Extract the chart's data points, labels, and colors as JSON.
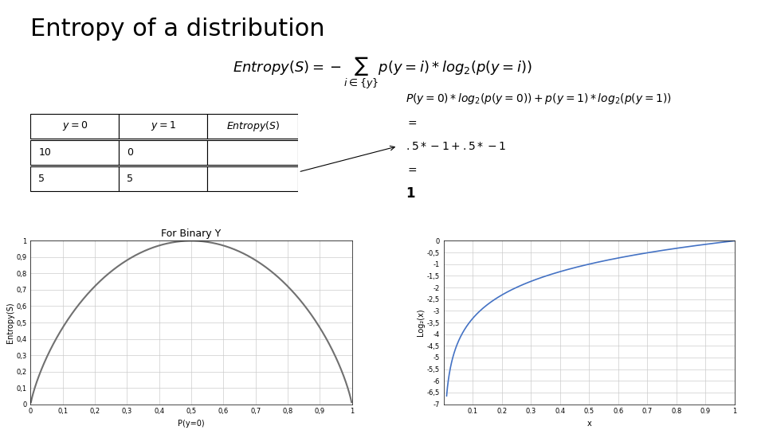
{
  "title": "Entropy of a distribution",
  "title_fontsize": 22,
  "background_color": "#ffffff",
  "formula": "Entropy(S) = -\\sum_{i\\in\\{y\\}} p(y=i) * log_2(p(y=i))",
  "table_headers": [
    "y = 0",
    "y = 1",
    "Entropy(S)"
  ],
  "table_rows": [
    [
      "10",
      "0",
      ""
    ],
    [
      "5",
      "5",
      ""
    ]
  ],
  "annotation_lines": [
    "P(y=0)*log₂(p(y=0)) + p(y=1)*log₂(p(y=1))",
    "=",
    ".5*-1 + .5*-1",
    "=",
    "1"
  ],
  "plot1_title": "For Binary Y",
  "plot1_xlabel": "P(y=0)",
  "plot1_ylabel": "Entropy(S)",
  "plot1_xlim": [
    0,
    1
  ],
  "plot1_ylim": [
    0,
    1
  ],
  "plot1_xticks": [
    0,
    0.1,
    0.2,
    0.3,
    0.4,
    0.5,
    0.6,
    0.7,
    0.8,
    0.9,
    1
  ],
  "plot1_yticks": [
    0,
    0.1,
    0.2,
    0.3,
    0.4,
    0.5,
    0.6,
    0.7,
    0.8,
    0.9,
    1
  ],
  "plot1_xtick_labels": [
    "0",
    "0,1",
    "0,2",
    "0,3",
    "0,4",
    "0,5",
    "0,6",
    "0,7",
    "0,8",
    "0,9",
    "1"
  ],
  "plot1_ytick_labels": [
    "0",
    "0,1",
    "0,2",
    "0,3",
    "0,4",
    "0,5",
    "0,6",
    "0,7",
    "0,8",
    "0,9",
    "1"
  ],
  "plot1_line_color": "#707070",
  "plot2_xlabel": "x",
  "plot2_ylabel": "Log₂(x)",
  "plot2_xlim": [
    0,
    1
  ],
  "plot2_ylim": [
    -7,
    0
  ],
  "plot2_xticks": [
    0.1,
    0.2,
    0.3,
    0.4,
    0.5,
    0.6,
    0.7,
    0.8,
    0.9,
    1
  ],
  "plot2_yticks": [
    0,
    -0.5,
    -1,
    -1.5,
    -2,
    -2.5,
    -3,
    -3.5,
    -4,
    -4.5,
    -5,
    -5.5,
    -6,
    -6.5,
    -7
  ],
  "plot2_ytick_labels": [
    "0",
    "-0,5",
    "-1",
    "-1,5",
    "-2",
    "-2,5",
    "-3",
    "-3,5",
    "-4",
    "-4,5",
    "-5",
    "-5,5",
    "-6",
    "-6,5",
    "-7"
  ],
  "plot2_line_color": "#4472c4"
}
